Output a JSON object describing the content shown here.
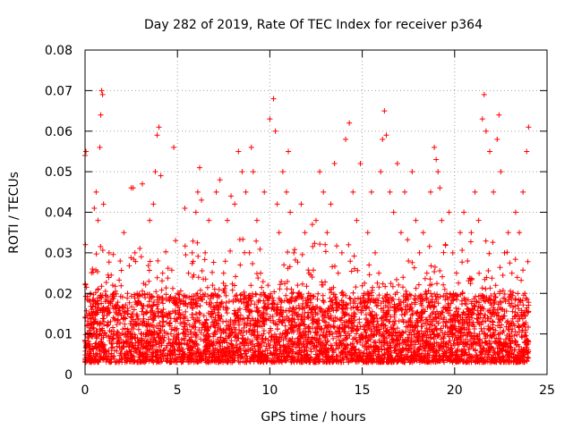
{
  "chart_data": {
    "type": "scatter",
    "title": "Day 282 of 2019, Rate Of TEC Index for receiver p364",
    "xlabel": "GPS time / hours",
    "ylabel": "ROTI / TECUs",
    "xlim": [
      0,
      25
    ],
    "ylim": [
      0,
      0.08
    ],
    "xticks": [
      0,
      5,
      10,
      15,
      20,
      25
    ],
    "xtick_labels": [
      "0",
      "5",
      "10",
      "15",
      "20",
      "25"
    ],
    "yticks": [
      0,
      0.01,
      0.02,
      0.03,
      0.04,
      0.05,
      0.06,
      0.07,
      0.08
    ],
    "ytick_labels": [
      "0",
      "0.01",
      "0.02",
      "0.03",
      "0.04",
      "0.05",
      "0.06",
      "0.07",
      "0.08"
    ],
    "grid": true,
    "marker": "+",
    "color": "#ff0000",
    "series": [
      {
        "name": "ROTI",
        "x": [
          0.0,
          0.05,
          0.1,
          0.15,
          0.2,
          0.3,
          0.4,
          0.5,
          0.6,
          0.7,
          0.8,
          0.85,
          0.9,
          0.95,
          1.0,
          1.1,
          1.2,
          1.3,
          1.5,
          1.7,
          1.9,
          2.1,
          2.3,
          2.5,
          2.6,
          2.7,
          2.9,
          3.1,
          3.3,
          3.5,
          3.7,
          3.8,
          3.9,
          4.0,
          4.1,
          4.2,
          4.4,
          4.6,
          4.8,
          4.9,
          5.0,
          5.2,
          5.4,
          5.6,
          5.8,
          6.0,
          6.1,
          6.2,
          6.3,
          6.5,
          6.7,
          6.9,
          7.1,
          7.3,
          7.5,
          7.7,
          7.9,
          8.1,
          8.3,
          8.5,
          8.7,
          8.9,
          9.0,
          9.1,
          9.3,
          9.5,
          9.7,
          9.9,
          10.0,
          10.2,
          10.3,
          10.4,
          10.5,
          10.7,
          10.9,
          11.0,
          11.1,
          11.3,
          11.5,
          11.7,
          11.9,
          12.1,
          12.3,
          12.5,
          12.7,
          12.9,
          13.1,
          13.3,
          13.5,
          13.7,
          13.9,
          14.1,
          14.3,
          14.5,
          14.7,
          14.9,
          15.1,
          15.3,
          15.5,
          15.7,
          15.9,
          16.0,
          16.1,
          16.2,
          16.3,
          16.5,
          16.7,
          16.9,
          17.1,
          17.3,
          17.5,
          17.7,
          17.9,
          18.1,
          18.3,
          18.5,
          18.7,
          18.9,
          19.0,
          19.1,
          19.2,
          19.3,
          19.5,
          19.7,
          19.9,
          20.1,
          20.3,
          20.5,
          20.7,
          20.9,
          21.1,
          21.3,
          21.5,
          21.6,
          21.7,
          21.9,
          22.1,
          22.3,
          22.4,
          22.5,
          22.7,
          22.9,
          23.1,
          23.3,
          23.5,
          23.7,
          23.9,
          24.0
        ],
        "y": [
          0.054,
          0.055,
          0.012,
          0.009,
          0.015,
          0.02,
          0.026,
          0.041,
          0.045,
          0.038,
          0.056,
          0.064,
          0.07,
          0.069,
          0.042,
          0.018,
          0.012,
          0.03,
          0.022,
          0.015,
          0.028,
          0.035,
          0.02,
          0.046,
          0.046,
          0.03,
          0.018,
          0.047,
          0.012,
          0.038,
          0.042,
          0.05,
          0.059,
          0.061,
          0.049,
          0.025,
          0.015,
          0.012,
          0.056,
          0.033,
          0.02,
          0.018,
          0.041,
          0.025,
          0.03,
          0.04,
          0.045,
          0.051,
          0.043,
          0.03,
          0.038,
          0.022,
          0.045,
          0.048,
          0.025,
          0.038,
          0.044,
          0.042,
          0.055,
          0.05,
          0.045,
          0.03,
          0.056,
          0.05,
          0.038,
          0.025,
          0.045,
          0.022,
          0.063,
          0.068,
          0.06,
          0.042,
          0.035,
          0.05,
          0.045,
          0.055,
          0.04,
          0.03,
          0.022,
          0.042,
          0.035,
          0.02,
          0.037,
          0.038,
          0.05,
          0.045,
          0.035,
          0.042,
          0.052,
          0.025,
          0.03,
          0.058,
          0.062,
          0.045,
          0.038,
          0.052,
          0.02,
          0.035,
          0.045,
          0.03,
          0.025,
          0.05,
          0.058,
          0.065,
          0.059,
          0.045,
          0.04,
          0.052,
          0.035,
          0.045,
          0.028,
          0.05,
          0.038,
          0.03,
          0.035,
          0.025,
          0.045,
          0.056,
          0.053,
          0.05,
          0.046,
          0.038,
          0.032,
          0.04,
          0.03,
          0.025,
          0.035,
          0.04,
          0.028,
          0.035,
          0.045,
          0.038,
          0.063,
          0.069,
          0.06,
          0.055,
          0.045,
          0.058,
          0.064,
          0.05,
          0.03,
          0.035,
          0.025,
          0.04,
          0.035,
          0.045,
          0.055,
          0.061
        ]
      }
    ],
    "background_band": {
      "x_range": [
        0,
        24
      ],
      "y_range": [
        0.003,
        0.02
      ],
      "density": "dense"
    }
  }
}
